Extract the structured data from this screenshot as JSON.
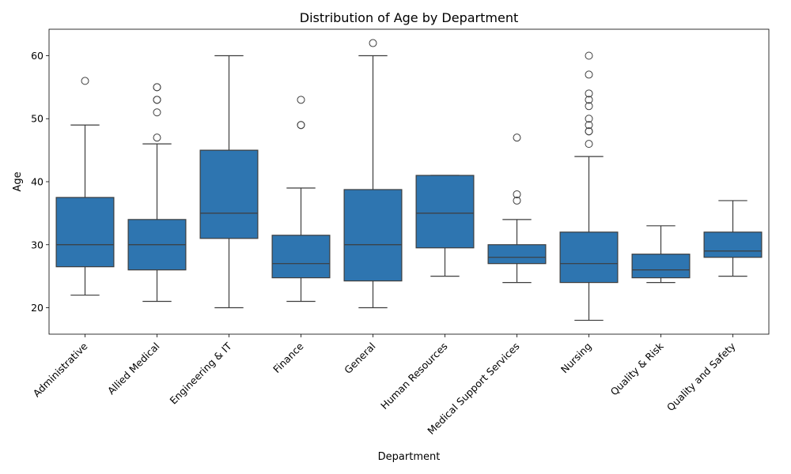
{
  "chart_data": {
    "type": "box",
    "title": "Distribution of Age by Department",
    "xlabel": "Department",
    "ylabel": "Age",
    "ylim": [
      15.8,
      64.2
    ],
    "yticks": [
      20,
      30,
      40,
      50,
      60
    ],
    "box_color": "#2e75b0",
    "line_color": "#3d3d3d",
    "grid": false,
    "categories": [
      "Administrative",
      "Allied Medical",
      "Engineering & IT",
      "Finance",
      "General",
      "Human Resources",
      "Medical Support Services",
      "Nursing",
      "Quality & Risk",
      "Quality and Safety"
    ],
    "boxes": [
      {
        "whisker_low": 22,
        "q1": 26.5,
        "median": 30,
        "q3": 37.5,
        "whisker_high": 49,
        "outliers": [
          56
        ]
      },
      {
        "whisker_low": 21,
        "q1": 26,
        "median": 30,
        "q3": 34,
        "whisker_high": 46,
        "outliers": [
          47,
          51,
          53,
          53,
          55,
          55
        ]
      },
      {
        "whisker_low": 20,
        "q1": 31,
        "median": 35,
        "q3": 45,
        "whisker_high": 60,
        "outliers": []
      },
      {
        "whisker_low": 21,
        "q1": 24.75,
        "median": 27,
        "q3": 31.5,
        "whisker_high": 39,
        "outliers": [
          49,
          49,
          53
        ]
      },
      {
        "whisker_low": 20,
        "q1": 24.25,
        "median": 30,
        "q3": 38.75,
        "whisker_high": 60,
        "outliers": [
          62
        ]
      },
      {
        "whisker_low": 25,
        "q1": 29.5,
        "median": 35,
        "q3": 41,
        "whisker_high": 41,
        "outliers": []
      },
      {
        "whisker_low": 24,
        "q1": 27,
        "median": 28,
        "q3": 30,
        "whisker_high": 34,
        "outliers": [
          37,
          38,
          47
        ]
      },
      {
        "whisker_low": 18,
        "q1": 24,
        "median": 27,
        "q3": 32,
        "whisker_high": 44,
        "outliers": [
          46,
          48,
          48,
          49,
          50,
          52,
          53,
          54,
          57,
          60
        ]
      },
      {
        "whisker_low": 24,
        "q1": 24.75,
        "median": 26,
        "q3": 28.5,
        "whisker_high": 33,
        "outliers": []
      },
      {
        "whisker_low": 25,
        "q1": 28,
        "median": 29,
        "q3": 32,
        "whisker_high": 37,
        "outliers": []
      }
    ]
  }
}
